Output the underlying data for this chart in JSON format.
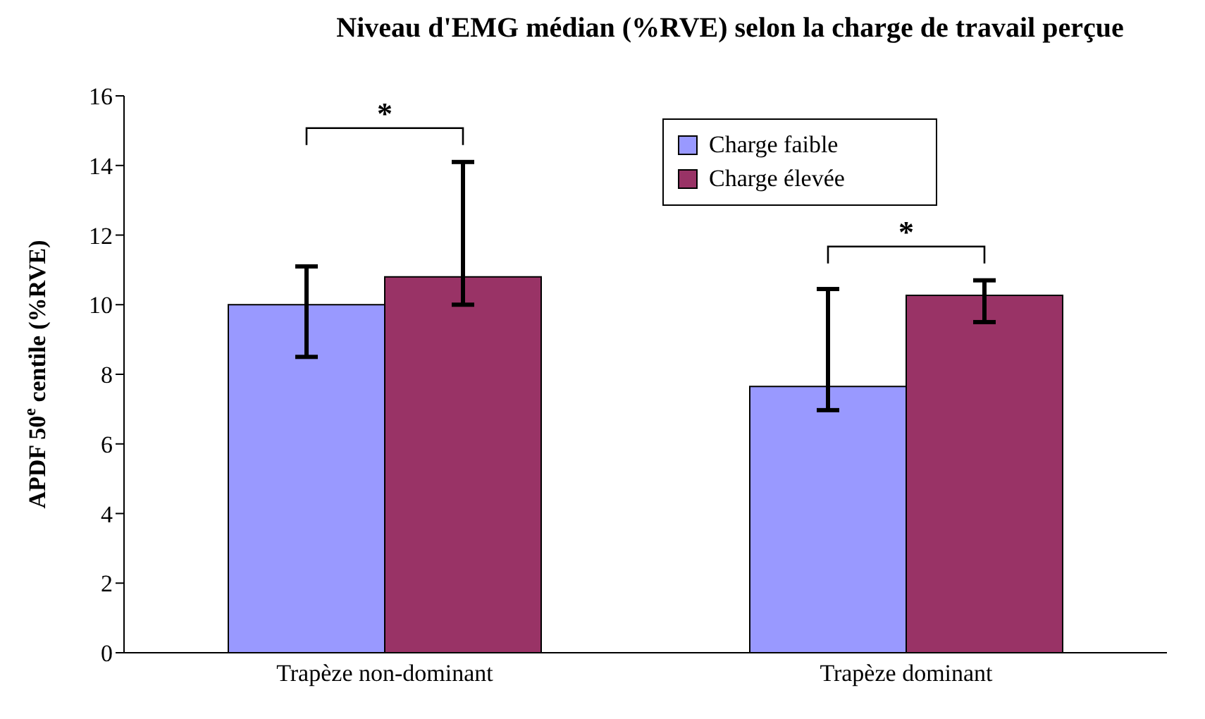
{
  "chart_data": {
    "type": "bar",
    "title": "Niveau d'EMG médian (%RVE) selon la charge de travail perçue",
    "ylabel": "APDF 50$^{e}$ centile (%RVE)",
    "categories": [
      "Trapèze non-dominant",
      "Trapèze dominant"
    ],
    "series": [
      {
        "name": "Charge faible",
        "color": "#9999ff",
        "values": [
          10.0,
          7.65
        ],
        "errors": [
          [
            8.5,
            11.1
          ],
          [
            6.97,
            10.45
          ]
        ]
      },
      {
        "name": "Charge élevée",
        "color": "#993366",
        "values": [
          10.8,
          10.27
        ],
        "errors": [
          [
            10.0,
            14.1
          ],
          [
            9.5,
            10.7
          ]
        ]
      }
    ],
    "ylim": [
      0,
      16
    ],
    "yticks": [
      0,
      2,
      4,
      6,
      8,
      10,
      12,
      14,
      16
    ],
    "grid": false,
    "legend": "top right",
    "annotations": [
      "*",
      "*"
    ]
  }
}
